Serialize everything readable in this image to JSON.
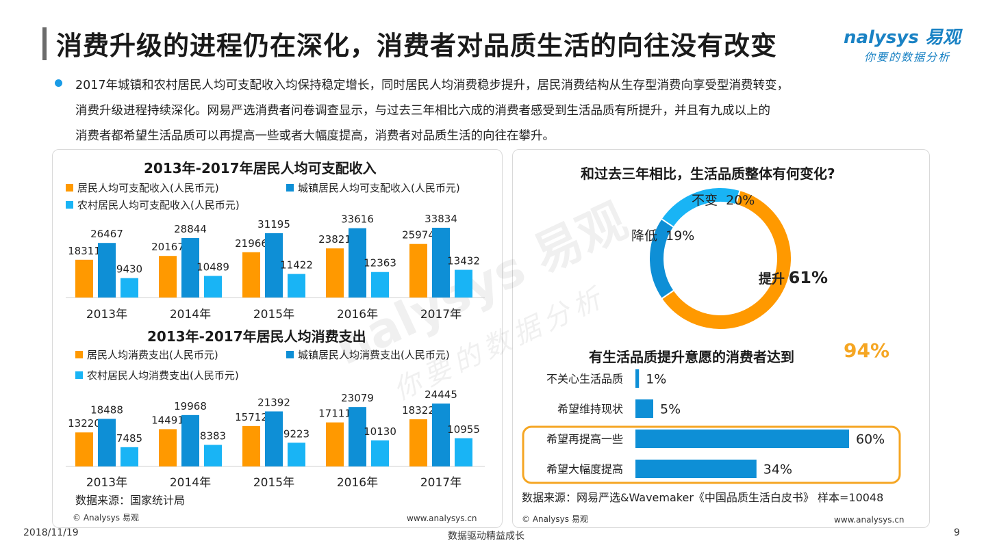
{
  "page": {
    "title": "消费升级的进程仍在深化，消费者对品质生活的向往没有改变",
    "logo_main": "nalysys 易观",
    "logo_sub": "你要的数据分析",
    "bullet_lines": [
      "2017年城镇和农村居民人均可支配收入均保持稳定增长，同时居民人均消费稳步提升，居民消费结构从生存型消费向享受型消费转变，",
      "消费升级进程持续深化。网易严选消费者问卷调查显示，与过去三年相比六成的消费者感受到生活品质有所提升，并且有九成以上的",
      "消费者都希望生活品质可以再提高一些或者大幅度提高，消费者对品质生活的向往在攀升。"
    ],
    "footer_date": "2018/11/19",
    "footer_slogan": "数据驱动精益成长",
    "footer_page": "9",
    "watermark": "nalysys 易观",
    "watermark_sub": "你要的数据分析"
  },
  "left_panel": {
    "source": "数据来源：国家统计局",
    "copyright": "© Analysys 易观",
    "url": "www.analysys.cn"
  },
  "right_panel": {
    "source": "数据来源：网易严选&Wavemaker《中国品质生活白皮书》 样本=10048",
    "copyright": "© Analysys 易观",
    "url": "www.analysys.cn"
  },
  "colors": {
    "orange": "#ff9900",
    "blue": "#0e8fd6",
    "lightblue": "#19b4f5",
    "accent": "#f5a623"
  },
  "chart_data": [
    {
      "type": "bar",
      "title": "2013年-2017年居民人均可支配收入",
      "categories": [
        "2013年",
        "2014年",
        "2015年",
        "2016年",
        "2017年"
      ],
      "series": [
        {
          "name": "居民人均可支配收入(人民币元)",
          "values": [
            18311,
            20167,
            21966,
            23821,
            25974
          ]
        },
        {
          "name": "城镇居民人均可支配收入(人民币元)",
          "values": [
            26467,
            28844,
            31195,
            33616,
            33834
          ]
        },
        {
          "name": "农村居民人均可支配收入(人民币元)",
          "values": [
            9430,
            10489,
            11422,
            12363,
            13432
          ]
        }
      ],
      "legend": "top",
      "grid": false
    },
    {
      "type": "bar",
      "title": "2013年-2017年居民人均消费支出",
      "categories": [
        "2013年",
        "2014年",
        "2015年",
        "2016年",
        "2017年"
      ],
      "series": [
        {
          "name": "居民人均消费支出(人民币元)",
          "values": [
            13220,
            14491,
            15712,
            17111,
            18322
          ]
        },
        {
          "name": "城镇居民人均消费支出(人民币元)",
          "values": [
            18488,
            19968,
            21392,
            23079,
            24445
          ]
        },
        {
          "name": "农村居民人均消费支出(人民币元)",
          "values": [
            7485,
            8383,
            9223,
            10130,
            10955
          ]
        }
      ],
      "legend": "top",
      "grid": false
    },
    {
      "type": "pie",
      "title": "和过去三年相比，生活品质整体有何变化?",
      "slices": [
        {
          "label": "提升",
          "value": 61,
          "text": "61%"
        },
        {
          "label": "降低",
          "value": 19,
          "text": "19%"
        },
        {
          "label": "不变",
          "value": 20,
          "text": "20%"
        }
      ]
    },
    {
      "type": "bar",
      "title": "有生活品质提升意愿的消费者达到",
      "highlight": "94%",
      "categories": [
        "不关心生活品质",
        "希望维持现状",
        "希望再提高一些",
        "希望大幅度提高"
      ],
      "values": [
        1,
        5,
        60,
        34
      ],
      "value_labels": [
        "1%",
        "5%",
        "60%",
        "34%"
      ],
      "xlim": [
        0,
        100
      ]
    }
  ]
}
